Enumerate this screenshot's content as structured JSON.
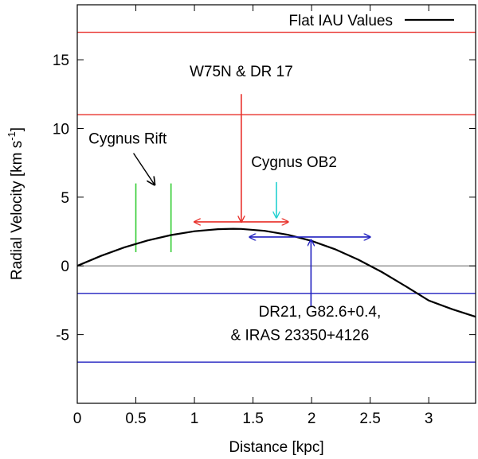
{
  "chart_data": {
    "type": "line",
    "title": "",
    "xlabel": "Distance [kpc]",
    "ylabel_parts": {
      "main": "Radial Velocity [km s",
      "superscript": "-1",
      "close": "]"
    },
    "xlim": [
      0,
      3.4
    ],
    "ylim": [
      -10,
      19
    ],
    "x_ticks": [
      0,
      0.5,
      1,
      1.5,
      2,
      2.5,
      3
    ],
    "x_tick_labels": [
      "0",
      "0.5",
      "1",
      "1.5",
      "2",
      "2.5",
      "3"
    ],
    "y_ticks": [
      -5,
      0,
      5,
      10,
      15
    ],
    "y_tick_labels": [
      "-5",
      "0",
      "5",
      "10",
      "15"
    ],
    "legend": {
      "label": "Flat IAU Values",
      "position": "top-right"
    },
    "series": [
      {
        "name": "Flat IAU Values",
        "color": "#000000",
        "x": [
          0,
          0.2,
          0.4,
          0.6,
          0.8,
          1.0,
          1.2,
          1.33,
          1.4,
          1.6,
          1.8,
          2.0,
          2.2,
          2.4,
          2.6,
          2.8,
          3.0,
          3.2,
          3.4
        ],
        "values": [
          0,
          0.72,
          1.34,
          1.85,
          2.24,
          2.52,
          2.67,
          2.7,
          2.69,
          2.55,
          2.26,
          1.82,
          1.21,
          0.45,
          -0.45,
          -1.47,
          -2.52,
          -3.15,
          -3.7
        ]
      }
    ],
    "reference_lines": [
      {
        "name": "zero-line",
        "y": 0,
        "color": "#808080"
      },
      {
        "name": "red-upper-limit",
        "y": 17,
        "color": "#e8302a"
      },
      {
        "name": "red-lower-limit",
        "y": 11,
        "color": "#e8302a"
      },
      {
        "name": "blue-upper-limit",
        "y": -2,
        "color": "#1f1fbf"
      },
      {
        "name": "blue-lower-limit",
        "y": -7,
        "color": "#1f1fbf"
      }
    ],
    "cygnus_rift_markers": [
      {
        "name": "cygnus-rift-marker-1",
        "x": 0.5,
        "y0": 1,
        "y1": 6,
        "color": "#33cc33"
      },
      {
        "name": "cygnus-rift-marker-2",
        "x": 0.8,
        "y0": 1,
        "y1": 6,
        "color": "#33cc33"
      }
    ],
    "vertical_arrows": [
      {
        "name": "w75n-arrow",
        "x": 1.4,
        "y_from": 12.5,
        "y_to": 3.2,
        "color": "#e8302a",
        "direction": "down"
      },
      {
        "name": "cygnus-ob2-arrow",
        "x": 1.7,
        "y_from": 6.1,
        "y_to": 3.5,
        "color": "#22d0d0",
        "direction": "down"
      },
      {
        "name": "dr21-arrow",
        "x": 1.995,
        "y_from": -3.0,
        "y_to": 1.9,
        "color": "#1f1fbf",
        "direction": "up"
      }
    ],
    "range_arrows": [
      {
        "name": "w75n-distance-range",
        "x0": 1.0,
        "x1": 1.8,
        "y": 3.2,
        "color": "#e8302a"
      },
      {
        "name": "dr21-distance-range",
        "x0": 1.47,
        "x1": 2.5,
        "y": 2.1,
        "color": "#1f1fbf"
      }
    ],
    "annotations": [
      {
        "name": "w75n-label",
        "text": "W75N & DR 17",
        "x": 1.4,
        "y": 13.8
      },
      {
        "name": "cygnus-rift-label",
        "text": "Cygnus Rift",
        "x": 0.43,
        "y": 8.9
      },
      {
        "name": "cygnus-ob2-label",
        "text": "Cygnus OB2",
        "x": 1.85,
        "y": 7.2
      },
      {
        "name": "dr21-label-line1",
        "text": "DR21, G82.6+0.4,",
        "x": 2.07,
        "y": -3.7
      },
      {
        "name": "dr21-label-line2",
        "text": "& IRAS 23350+4126",
        "x": 1.9,
        "y": -5.4
      }
    ],
    "pointer_arrow": {
      "name": "cygnus-rift-pointer",
      "x0": 0.48,
      "y0": 8.2,
      "x1": 0.66,
      "y1": 5.9,
      "color": "#000000"
    }
  }
}
